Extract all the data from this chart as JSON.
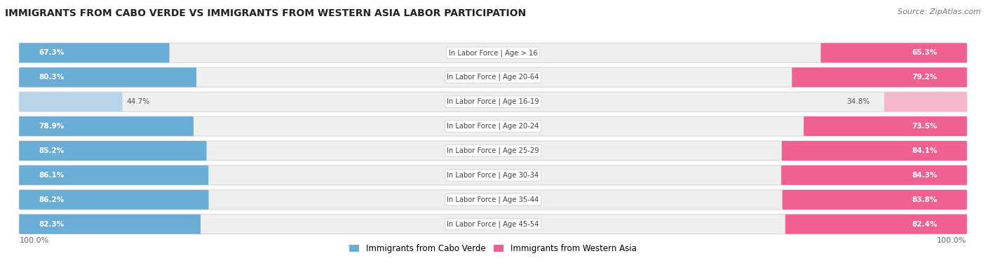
{
  "title": "IMMIGRANTS FROM CABO VERDE VS IMMIGRANTS FROM WESTERN ASIA LABOR PARTICIPATION",
  "source": "Source: ZipAtlas.com",
  "categories": [
    "In Labor Force | Age > 16",
    "In Labor Force | Age 20-64",
    "In Labor Force | Age 16-19",
    "In Labor Force | Age 20-24",
    "In Labor Force | Age 25-29",
    "In Labor Force | Age 30-34",
    "In Labor Force | Age 35-44",
    "In Labor Force | Age 45-54"
  ],
  "cabo_verde_values": [
    67.3,
    80.3,
    44.7,
    78.9,
    85.2,
    86.1,
    86.2,
    82.3
  ],
  "western_asia_values": [
    65.3,
    79.2,
    34.8,
    73.5,
    84.1,
    84.3,
    83.8,
    82.4
  ],
  "cabo_verde_color": "#6aadd5",
  "cabo_verde_color_light": "#b8d4ea",
  "western_asia_color": "#f06090",
  "western_asia_color_light": "#f5b8cc",
  "row_bg_color": "#efefef",
  "row_border_color": "#d8d8d8",
  "max_value": 100.0,
  "legend_cabo_verde": "Immigrants from Cabo Verde",
  "legend_western_asia": "Immigrants from Western Asia"
}
